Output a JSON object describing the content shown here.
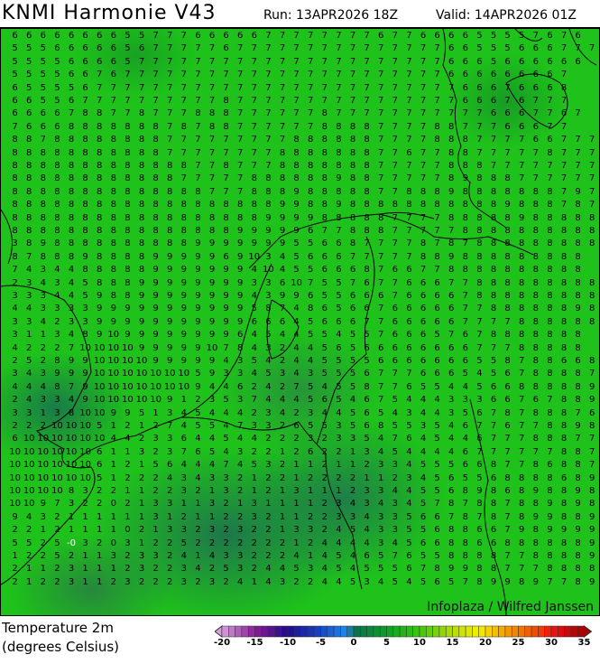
{
  "header": {
    "title": "KNMI Harmonie V43",
    "run": "Run: 13APR2026 18Z",
    "valid": "Valid: 14APR2026 01Z"
  },
  "map": {
    "watermark": "Infoplaza / Wilfred Janssen",
    "highlighted_value": "-0",
    "grid": [
      "6 6 6 6 6 6 6 6 5 5 7 7 7 6 6 6 6 6 7 7 7 7 7 7 7 7 6 7 7 6 6 6 6 5 5 5 5 7 6 7 6",
      "5 5 5 6 6 6 6 6 5 6 7 7 7 7 7 6 7 7 7 7 7 7 7 7 7 7 7 7 7 7 7 6 6 5 5 5 6 6 6 7 7 7",
      "5 5 5 5 6 6 6 6 5 7 7 7 7 7 7 7 7 7 7 7 7 7 7 7 7 7 7 7 7 7 7 6 6 6 5 6 6 6 6 6 6",
      "5 5 5 5 6 6 7 6 7 7 7 7 7 7 7 7 7 7 7 7 7 7 7 7 7 7 7 7 7 7 7 6 6 6 6 6 6 6 6 7",
      "6 5 5 5 5 6 7 7 7 7 7 7 7 7 7 7 7 7 7 7 7 7 7 7 7 7 7 7 7 7 7 7 6 6 6 7 6 6 6 8",
      "6 6 5 5 6 7 7 7 7 7 7 7 7 7 7 8 7 7 7 7 7 7 7 7 7 7 7 7 7 7 7 7 6 6 6 7 6 7 7 7",
      "6 6 6 6 7 8 8 7 7 8 7 7 7 8 8 8 7 7 7 7 7 7 8 7 7 7 7 7 7 7 7 7 7 7 6 6 6 7 7 6 7",
      "7 6 6 6 8 8 8 8 8 8 8 7 8 7 8 8 7 7 7 7 7 7 8 8 8 8 7 7 7 7 8 8 7 7 7 6 6 6 7 7",
      "8 8 7 8 8 8 8 8 8 8 8 7 7 7 7 7 7 7 7 7 8 8 8 8 8 8 7 7 7 7 8 8 8 7 7 7 7 6 6 7 7 7",
      "8 8 8 8 8 8 8 8 8 8 8 7 7 7 7 7 7 7 7 8 8 8 8 8 8 8 7 7 6 7 7 8 8 7 7 7 7 7 8 7 7 7",
      "8 8 8 8 8 8 8 8 8 8 8 8 8 7 7 8 7 7 7 8 8 8 8 8 8 8 7 7 7 7 7 8 8 8 7 7 7 7 7 7 7 7",
      "8 8 8 8 8 8 8 8 8 8 8 8 7 7 7 7 7 8 8 8 8 8 8 9 8 8 7 7 7 7 7 8 9 8 8 8 7 7 7 7 7 7",
      "8 8 8 8 8 8 8 8 8 8 8 8 8 8 7 7 7 8 8 8 9 8 8 8 8 8 7 7 8 8 8 9 8 8 8 8 8 8 8 7 9 7",
      "8 8 8 8 8 8 8 8 8 8 8 8 8 8 8 8 8 8 8 9 9 8 8 9 8 8 8 8 8 8 8 8 8 8 8 9 8 8 8 7 8 7",
      "8 8 8 8 8 8 8 8 8 8 8 8 8 8 8 8 8 8 9 9 9 9 8 8 8 8 8 7 7 7 7 8 8 8 8 8 9 8 8 8 8 8",
      "8 8 8 8 8 8 8 8 8 8 8 8 8 8 8 8 9 9 9 9 9 6 7 7 8 8 8 7 7 7 7 7 8 8 8 8 8 8 8 8 8 8",
      "3 8 9 8 8 8 8 8 8 8 8 8 8 9 9 9 9 9 9 9 5 5 6 6 8 7 7 7 7 8 7 8 7 8 8 8 8 8 8 8 8 8",
      "8 7 8 8 8 9 8 8 8 8 9 9 9 9 9 6 9 10 3 4 5 6 6 6 7 7 7 7 7 8 8 9 8 8 8 8 8 8 8 8 8",
      "7 4 3 4 4 8 8 8 8 8 9 9 9 9 9 9 9 4 10 4 5 5 6 6 6 8 7 6 6 7 7 8 8 8 8 8 8 8 8 8 8",
      "2 3 4 3 4 5 8 8 8 9 9 9 9 9 9 9 9 3 3 6 10 7 5 5 7 6 7 7 6 6 6 7 7 8 8 8 8 8 8 8 8 8",
      "3 3 3 4 4 5 9 8 8 9 9 9 9 9 9 9 9 4 3 9 9 6 5 5 6 6 6 7 6 6 6 6 7 8 8 8 8 8 8 8 8 8",
      "4 4 3 3 3 3 9 9 9 9 9 9 9 9 9 9 9 5 8 7 4 8 6 5 6 6 7 6 6 6 6 6 7 7 8 8 8 8 8 8 9 8",
      "3 3 4 2 3 3 9 9 9 9 9 9 9 9 9 9 9 6 6 6 4 5 6 6 6 7 7 6 6 6 6 6 7 7 7 7 8 8 8 8 8 8",
      "3 1 1 3 4 8 9 10 9 9 9 9 9 9 9 9 6 4 5 4 4 5 5 4 5 5 7 6 6 6 5 7 6 7 8 8 8 8 8 8 8",
      "4 2 2 2 7 10 10 10 10 9 9 9 9 9 10 7 8 4 3 2 4 4 5 6 5 6 6 6 6 6 6 6 6 7 7 7 8 8 8 8 8",
      "2 5 2 8 9 9 10 10 10 10 9 9 9 9 9 4 3 5 4 2 4 4 5 5 5 5 6 6 6 6 6 6 6 5 5 8 7 8 8 6 6 8",
      "3 4 3 9 9 9 10 10 10 10 10 10 10 5 9 3 3 4 5 3 4 3 5 5 5 6 7 7 7 6 6 6 5 4 5 6 7 8 8 8 8 7",
      "4 4 4 8 7 9 10 10 10 10 10 10 10 9 4 4 6 2 4 2 7 5 4 5 5 8 7 7 6 5 5 4 4 5 6 6 8 8 8 8 8 9",
      "2 4 3 3 4 9 10 10 10 10 10 9 1 2 3 5 3 7 4 4 4 5 6 5 4 6 7 5 4 4 4 3 3 3 6 6 7 6 7 8 8 9",
      "3 3 1 3 8 10 10 9 9 5 1 3 4 5 4 4 4 2 3 4 2 3 4 4 5 6 5 4 3 4 4 3 5 6 7 8 7 8 8 8 7 6",
      "2 2 2 10 10 10 5 1 2 1 2 7 4 5 5 4 7 3 3 2 6 5 5 3 5 6 8 5 5 3 5 4 6 7 7 6 7 7 8 8 9 8",
      "6 10 10 10 10 10 10 4 4 2 3 3 6 4 4 5 4 4 2 2 2 3 2 3 3 5 4 7 6 4 5 4 4 6 7 7 7 8 8 8 7 7",
      "10 10 10 10 10 10 6 1 1 3 2 3 7 6 5 4 3 2 2 1 2 6 2 2 1 3 4 5 4 4 4 4 6 7 7 7 7 7 7 8 8 7",
      "10 10 10 10 10 10 6 1 2 1 5 6 4 4 4 7 4 5 3 2 1 1 2 1 1 2 3 3 4 5 5 5 6 6 8 7 7 8 6 8 8 7",
      "10 10 10 10 10 10 5 1 2 2 2 4 3 4 3 3 2 1 2 2 1 2 2 2 2 1 1 2 3 4 5 6 5 5 6 8 8 8 8 6 8 9",
      "10 10 10 10 8 3 2 2 1 1 2 2 3 2 1 3 2 1 2 1 3 1 1 1 2 3 3 4 4 5 5 6 8 9 8 6 8 9 8 8 9 8",
      "10 10 9 7 3 2 2 0 2 1 3 3 1 1 3 2 1 3 1 1 1 1 2 3 4 3 4 3 4 5 7 8 7 8 8 7 8 8 9 8 9 8",
      "9 4 3 2 1 1 1 1 1 1 3 1 2 1 1 2 2 3 2 1 1 2 2 3 3 4 3 3 5 6 6 7 8 7 8 7 8 9 9 8 8 9",
      "2 2 1 2 1 1 1 1 0 2 1 3 3 2 3 2 3 2 2 1 3 3 2 4 5 4 3 3 5 5 6 8 8 6 6 7 9 8 9 9 9 9",
      "5 5 2 5 -0 3 2 0 3 1 2 2 5 2 2 2 2 2 2 2 1 2 4 4 4 4 3 4 5 6 6 8 8 6 6 8 8 8 8 8 8 9",
      "1 2 2 5 2 1 1 3 2 3 3 2 4 1 4 3 3 2 2 2 4 1 4 5 4 6 5 7 6 5 5 8 8 8 8 7 7 8 8 8 8 9",
      "2 1 1 2 3 1 1 1 2 3 2 2 3 4 2 5 3 2 4 4 5 3 4 5 4 5 5 5 6 7 8 9 9 8 8 7 7 7 8 8 8 8",
      "2 1 2 2 3 1 1 2 3 2 2 2 3 2 3 2 4 1 4 3 2 2 4 4 5 3 4 5 4 5 6 5 7 8 9 9 8 9 7 7 8 9"
    ]
  },
  "legend": {
    "title": "Temperature 2m",
    "unit": "(degrees Celsius)",
    "min": -20,
    "max": 35,
    "ticks": [
      "-20",
      "-15",
      "-10",
      "-5",
      "0",
      "5",
      "10",
      "15",
      "20",
      "25",
      "30",
      "35"
    ],
    "color_stops": [
      {
        "value": -20,
        "color": "#d4a0dc"
      },
      {
        "value": -15,
        "color": "#8a1e96"
      },
      {
        "value": -10,
        "color": "#1e0a8c"
      },
      {
        "value": -5,
        "color": "#1446c8"
      },
      {
        "value": -1,
        "color": "#1e8cf0"
      },
      {
        "value": 0,
        "color": "#0a6e50"
      },
      {
        "value": 5,
        "color": "#0aa028"
      },
      {
        "value": 10,
        "color": "#3cc80a"
      },
      {
        "value": 15,
        "color": "#b4dc0a"
      },
      {
        "value": 19,
        "color": "#f5f000"
      },
      {
        "value": 23,
        "color": "#f5a000"
      },
      {
        "value": 28,
        "color": "#f04600"
      },
      {
        "value": 30,
        "color": "#f01414"
      },
      {
        "value": 35,
        "color": "#a00000"
      }
    ]
  }
}
